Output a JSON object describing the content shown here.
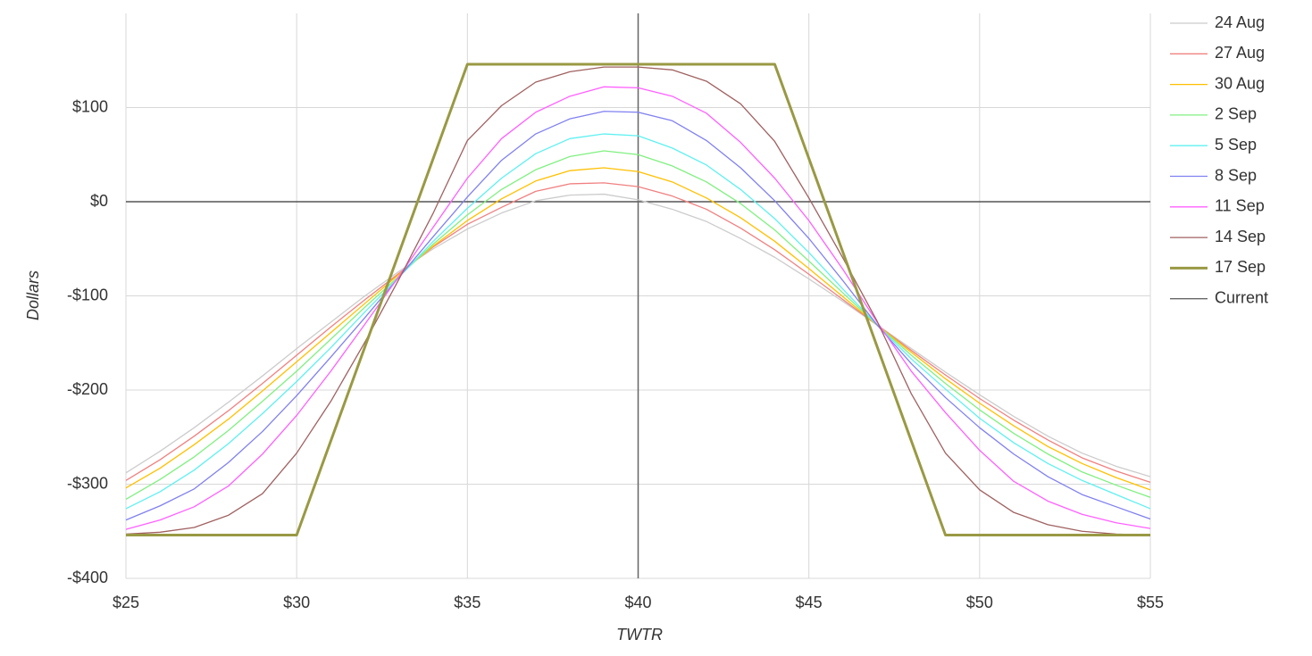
{
  "chart_data": {
    "type": "line",
    "x_label": "TWTR",
    "y_label": "Dollars",
    "x": [
      25,
      26,
      27,
      28,
      29,
      30,
      31,
      32,
      33,
      34,
      35,
      36,
      37,
      38,
      39,
      40,
      41,
      42,
      43,
      44,
      45,
      46,
      47,
      48,
      49,
      50,
      51,
      52,
      53,
      54,
      55
    ],
    "xlim": [
      25,
      55
    ],
    "xticks": [
      {
        "value": 25,
        "label": "$25"
      },
      {
        "value": 30,
        "label": "$30"
      },
      {
        "value": 35,
        "label": "$35"
      },
      {
        "value": 40,
        "label": "$40"
      },
      {
        "value": 45,
        "label": "$45"
      },
      {
        "value": 50,
        "label": "$50"
      },
      {
        "value": 55,
        "label": "$55"
      }
    ],
    "ylim": [
      -400,
      200
    ],
    "yticks": [
      {
        "value": -400,
        "label": "-$400"
      },
      {
        "value": -300,
        "label": "-$300"
      },
      {
        "value": -200,
        "label": "-$200"
      },
      {
        "value": -100,
        "label": "-$100"
      },
      {
        "value": 0,
        "label": "$0"
      },
      {
        "value": 100,
        "label": "$100"
      }
    ],
    "grid": true,
    "legend": "right",
    "series": [
      {
        "name": "24 Aug",
        "color": "#cccccc",
        "values": [
          -288,
          -265,
          -240,
          -213,
          -185,
          -156,
          -128,
          -100,
          -74,
          -50,
          -29,
          -12,
          1,
          7,
          8,
          2,
          -8,
          -21,
          -39,
          -59,
          -82,
          -106,
          -131,
          -156,
          -181,
          -205,
          -228,
          -249,
          -267,
          -281,
          -292
        ]
      },
      {
        "name": "27 Aug",
        "color": "#f08080",
        "values": [
          -296,
          -274,
          -249,
          -222,
          -193,
          -163,
          -133,
          -104,
          -76,
          -48,
          -24,
          -6,
          11,
          19,
          20,
          16,
          6,
          -8,
          -28,
          -51,
          -77,
          -104,
          -131,
          -158,
          -184,
          -209,
          -232,
          -253,
          -272,
          -286,
          -298
        ]
      },
      {
        "name": "30 Aug",
        "color": "#ffc000",
        "values": [
          -304,
          -283,
          -258,
          -231,
          -201,
          -170,
          -139,
          -108,
          -77,
          -47,
          -20,
          3,
          22,
          33,
          36,
          32,
          21,
          4,
          -17,
          -42,
          -71,
          -101,
          -131,
          -160,
          -188,
          -214,
          -238,
          -260,
          -278,
          -293,
          -306
        ]
      },
      {
        "name": "2 Sep",
        "color": "#80f080",
        "values": [
          -316,
          -295,
          -271,
          -243,
          -212,
          -180,
          -146,
          -112,
          -79,
          -45,
          -14,
          13,
          34,
          48,
          54,
          50,
          38,
          21,
          -2,
          -30,
          -63,
          -97,
          -131,
          -163,
          -193,
          -221,
          -246,
          -268,
          -287,
          -301,
          -314
        ]
      },
      {
        "name": "5 Sep",
        "color": "#60f0f0",
        "values": [
          -326,
          -308,
          -285,
          -257,
          -225,
          -191,
          -155,
          -117,
          -80,
          -42,
          -7,
          25,
          51,
          67,
          72,
          70,
          57,
          39,
          13,
          -18,
          -54,
          -93,
          -131,
          -167,
          -199,
          -230,
          -256,
          -278,
          -296,
          -311,
          -326
        ]
      },
      {
        "name": "8 Sep",
        "color": "#8080f0",
        "values": [
          -338,
          -323,
          -305,
          -277,
          -244,
          -206,
          -165,
          -123,
          -80,
          -37,
          5,
          44,
          72,
          88,
          96,
          95,
          86,
          65,
          36,
          1,
          -39,
          -84,
          -131,
          -172,
          -208,
          -240,
          -268,
          -292,
          -311,
          -324,
          -337
        ]
      },
      {
        "name": "11 Sep",
        "color": "#ff60ff",
        "values": [
          -348,
          -338,
          -324,
          -302,
          -268,
          -227,
          -180,
          -130,
          -79,
          -27,
          25,
          67,
          95,
          112,
          122,
          121,
          112,
          94,
          63,
          25,
          -20,
          -72,
          -128,
          -180,
          -224,
          -264,
          -297,
          -318,
          -332,
          -341,
          -347
        ]
      },
      {
        "name": "14 Sep",
        "color": "#a06060",
        "values": [
          -353,
          -351,
          -346,
          -333,
          -310,
          -267,
          -212,
          -149,
          -82,
          -12,
          65,
          102,
          127,
          138,
          143,
          143,
          140,
          128,
          104,
          64,
          4,
          -60,
          -127,
          -204,
          -267,
          -306,
          -330,
          -343,
          -350,
          -353,
          -354
        ]
      },
      {
        "name": "17 Sep",
        "color": "#999944",
        "linewidth": 3,
        "values": [
          -354,
          -354,
          -354,
          -354,
          -354,
          -354,
          -254,
          -154,
          -54,
          46,
          146,
          146,
          146,
          146,
          146,
          146,
          146,
          146,
          146,
          146,
          46,
          -54,
          -154,
          -254,
          -354,
          -354,
          -354,
          -354,
          -354,
          -354,
          -354
        ]
      }
    ],
    "current": {
      "name": "Current",
      "color": "#666666",
      "x": 40
    }
  }
}
